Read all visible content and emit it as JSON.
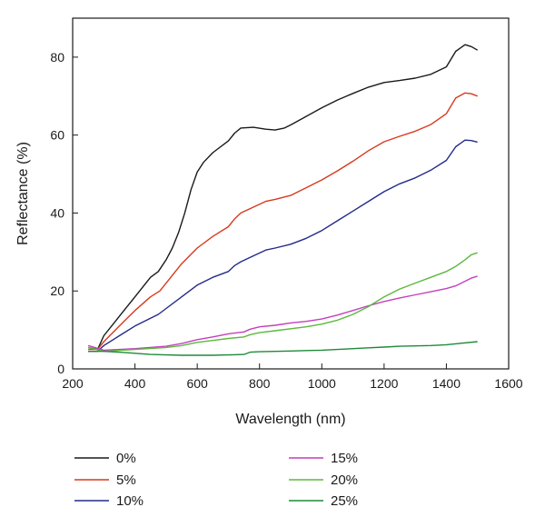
{
  "chart_data": {
    "type": "line",
    "xlabel": "Wavelength (nm)",
    "ylabel": "Reflectance (%)",
    "xlim": [
      200,
      1600
    ],
    "ylim": [
      0,
      90
    ],
    "xticks": [
      200,
      400,
      600,
      800,
      1000,
      1200,
      1400,
      1600
    ],
    "yticks": [
      0,
      20,
      40,
      60,
      80
    ],
    "grid": false,
    "legend_position": "bottom",
    "series": [
      {
        "name": "0%",
        "color": "#1a1a1a",
        "x": [
          250,
          280,
          300,
          350,
          400,
          450,
          475,
          500,
          520,
          540,
          560,
          580,
          600,
          620,
          650,
          700,
          720,
          740,
          780,
          820,
          850,
          880,
          900,
          950,
          1000,
          1050,
          1100,
          1150,
          1200,
          1250,
          1300,
          1350,
          1400,
          1430,
          1460,
          1480,
          1500
        ],
        "y": [
          5.5,
          5.0,
          8.5,
          13.5,
          18.5,
          23.5,
          25.0,
          28.0,
          31.0,
          35.0,
          40.0,
          46.0,
          50.5,
          53.0,
          55.5,
          58.5,
          60.5,
          61.8,
          62.0,
          61.5,
          61.3,
          61.8,
          62.6,
          64.8,
          67.0,
          69.0,
          70.7,
          72.3,
          73.5,
          74.0,
          74.6,
          75.6,
          77.5,
          81.5,
          83.2,
          82.7,
          81.8
        ]
      },
      {
        "name": "5%",
        "color": "#d63a1e",
        "x": [
          250,
          280,
          300,
          350,
          400,
          450,
          480,
          500,
          550,
          600,
          650,
          700,
          720,
          740,
          780,
          820,
          850,
          900,
          950,
          1000,
          1050,
          1100,
          1150,
          1200,
          1250,
          1300,
          1350,
          1400,
          1430,
          1460,
          1480,
          1500
        ],
        "y": [
          5.0,
          5.0,
          7.0,
          11.0,
          15.0,
          18.5,
          20.0,
          22.0,
          27.0,
          31.0,
          34.0,
          36.5,
          38.5,
          40.0,
          41.5,
          43.0,
          43.5,
          44.5,
          46.5,
          48.5,
          50.8,
          53.3,
          56.0,
          58.3,
          59.7,
          61.0,
          62.7,
          65.5,
          69.5,
          70.8,
          70.6,
          70.0
        ]
      },
      {
        "name": "10%",
        "color": "#232a8a",
        "x": [
          250,
          280,
          300,
          350,
          400,
          450,
          475,
          500,
          550,
          600,
          650,
          700,
          720,
          740,
          780,
          820,
          850,
          900,
          950,
          1000,
          1050,
          1100,
          1150,
          1200,
          1250,
          1300,
          1350,
          1400,
          1430,
          1460,
          1480,
          1500
        ],
        "y": [
          4.5,
          4.5,
          6.0,
          8.5,
          11.0,
          13.0,
          14.0,
          15.5,
          18.5,
          21.5,
          23.5,
          25.0,
          26.5,
          27.5,
          29.0,
          30.5,
          31.0,
          32.0,
          33.5,
          35.5,
          38.0,
          40.5,
          43.0,
          45.5,
          47.5,
          49.0,
          51.0,
          53.5,
          57.0,
          58.7,
          58.6,
          58.2
        ]
      },
      {
        "name": "15%",
        "color": "#c43fbd",
        "x": [
          250,
          300,
          400,
          500,
          550,
          600,
          650,
          700,
          750,
          770,
          800,
          850,
          900,
          950,
          1000,
          1050,
          1100,
          1150,
          1200,
          1250,
          1300,
          1350,
          1400,
          1430,
          1460,
          1480,
          1500
        ],
        "y": [
          6.0,
          4.8,
          5.2,
          5.8,
          6.5,
          7.5,
          8.2,
          9.0,
          9.5,
          10.2,
          10.8,
          11.2,
          11.8,
          12.2,
          12.8,
          13.8,
          15.0,
          16.2,
          17.3,
          18.2,
          19.0,
          19.8,
          20.6,
          21.3,
          22.5,
          23.3,
          23.8
        ]
      },
      {
        "name": "20%",
        "color": "#5bb83d",
        "x": [
          250,
          300,
          400,
          500,
          550,
          600,
          650,
          700,
          750,
          770,
          800,
          850,
          900,
          950,
          1000,
          1050,
          1100,
          1150,
          1200,
          1250,
          1300,
          1350,
          1400,
          1430,
          1460,
          1480,
          1500
        ],
        "y": [
          5.5,
          4.5,
          5.0,
          5.5,
          6.0,
          6.8,
          7.3,
          7.8,
          8.2,
          8.8,
          9.3,
          9.8,
          10.3,
          10.8,
          11.5,
          12.5,
          14.0,
          16.0,
          18.5,
          20.5,
          22.0,
          23.5,
          25.0,
          26.3,
          28.0,
          29.3,
          29.8
        ]
      },
      {
        "name": "25%",
        "color": "#1e8a3a",
        "x": [
          250,
          300,
          350,
          400,
          450,
          500,
          550,
          600,
          650,
          700,
          750,
          770,
          800,
          850,
          900,
          950,
          1000,
          1050,
          1100,
          1150,
          1200,
          1250,
          1300,
          1350,
          1400,
          1450,
          1500
        ],
        "y": [
          4.5,
          4.5,
          4.3,
          4.0,
          3.7,
          3.6,
          3.5,
          3.5,
          3.5,
          3.6,
          3.7,
          4.3,
          4.4,
          4.5,
          4.6,
          4.7,
          4.8,
          5.0,
          5.2,
          5.4,
          5.6,
          5.8,
          5.9,
          6.0,
          6.2,
          6.6,
          7.0
        ]
      }
    ]
  }
}
